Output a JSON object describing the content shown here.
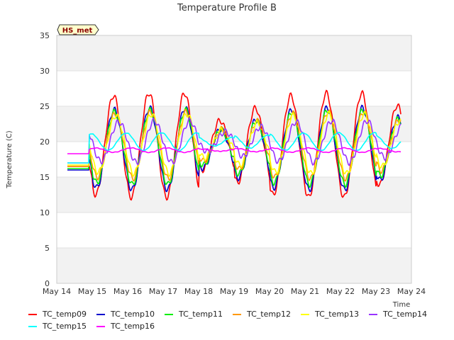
{
  "chart_data": {
    "type": "line",
    "title": "Temperature Profile B",
    "xlabel": "Time",
    "ylabel": "Temperature (C)",
    "ylim": [
      0,
      35
    ],
    "yticks": [
      0,
      5,
      10,
      15,
      20,
      25,
      30,
      35
    ],
    "xticks": [
      "May 14",
      "May 15",
      "May 16",
      "May 17",
      "May 18",
      "May 19",
      "May 20",
      "May 21",
      "May 22",
      "May 23",
      "May 24"
    ],
    "xlim": [
      14,
      24
    ],
    "grid": "horizontal bands",
    "annotation": "HS_met",
    "legend_position": "bottom",
    "series": [
      {
        "name": "TC_temp09",
        "color": "#ff0000",
        "base": 19.5,
        "amp": 7.0,
        "phase": 0.0
      },
      {
        "name": "TC_temp10",
        "color": "#0000cc",
        "base": 19.0,
        "amp": 5.5,
        "phase": 0.02
      },
      {
        "name": "TC_temp11",
        "color": "#00ee00",
        "base": 19.2,
        "amp": 5.0,
        "phase": 0.03
      },
      {
        "name": "TC_temp12",
        "color": "#ff9900",
        "base": 19.5,
        "amp": 4.5,
        "phase": 0.05
      },
      {
        "name": "TC_temp13",
        "color": "#ffff00",
        "base": 19.7,
        "amp": 4.0,
        "phase": 0.07
      },
      {
        "name": "TC_temp14",
        "color": "#9933ff",
        "base": 20.0,
        "amp": 2.8,
        "phase": 0.15
      },
      {
        "name": "TC_temp15",
        "color": "#00ffff",
        "base": 20.0,
        "amp": 1.2,
        "phase": 0.35
      },
      {
        "name": "TC_temp16",
        "color": "#ff00ff",
        "base": 18.8,
        "amp": 0.3,
        "phase": 0.5
      }
    ]
  }
}
